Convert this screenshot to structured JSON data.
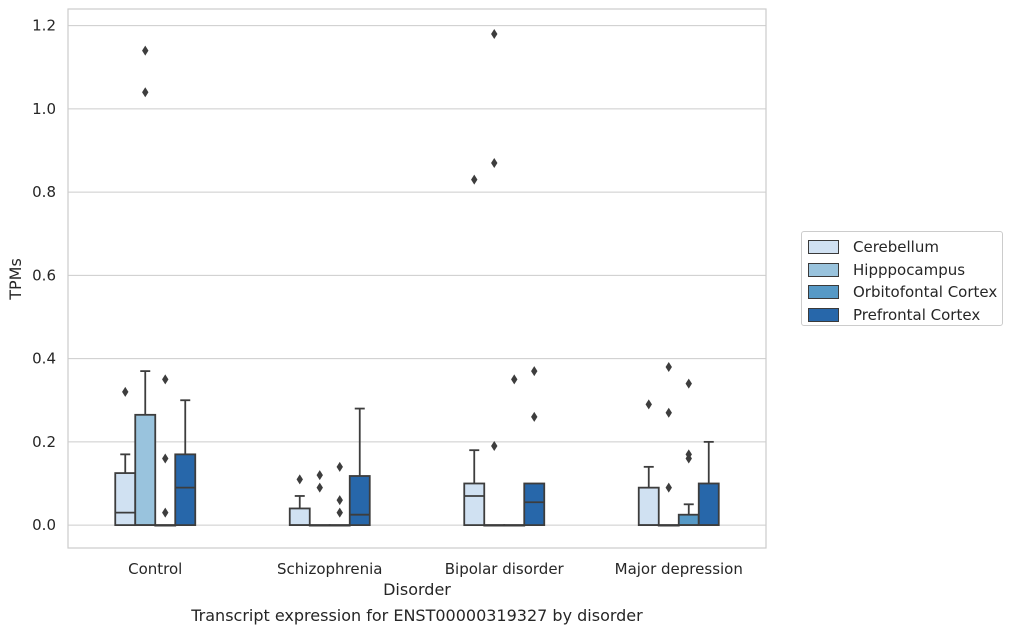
{
  "caption": "Transcript expression for ENST00000319327 by disorder",
  "chart_data": {
    "type": "box",
    "title": "",
    "xlabel": "Disorder",
    "ylabel": "TPMs",
    "ylim": [
      -0.055,
      1.24
    ],
    "yticks": [
      0.0,
      0.2,
      0.4,
      0.6,
      0.8,
      1.0,
      1.2
    ],
    "ytick_labels": [
      "0.0",
      "0.2",
      "0.4",
      "0.6",
      "0.8",
      "1.0",
      "1.2"
    ],
    "grid": true,
    "legend_position": "right",
    "categories": [
      "Control",
      "Schizophrenia",
      "Bipolar disorder",
      "Major depression"
    ],
    "series": [
      {
        "name": "Cerebellum",
        "color": "#d0e1f2",
        "boxes": [
          {
            "q1": 0,
            "median": 0.03,
            "q3": 0.125,
            "whisker_low": 0,
            "whisker_high": 0.17,
            "outliers": [
              0.32
            ]
          },
          {
            "q1": 0,
            "median": 0,
            "q3": 0.04,
            "whisker_low": 0,
            "whisker_high": 0.07,
            "outliers": [
              0.11
            ]
          },
          {
            "q1": 0,
            "median": 0.07,
            "q3": 0.1,
            "whisker_low": 0,
            "whisker_high": 0.18,
            "outliers": [
              0.83
            ]
          },
          {
            "q1": 0,
            "median": 0,
            "q3": 0.09,
            "whisker_low": 0,
            "whisker_high": 0.14,
            "outliers": [
              0.29
            ]
          }
        ]
      },
      {
        "name": "Hipppocampus",
        "color": "#99c3dd",
        "boxes": [
          {
            "q1": 0,
            "median": 0,
            "q3": 0.265,
            "whisker_low": 0,
            "whisker_high": 0.37,
            "outliers": [
              1.04,
              1.14
            ]
          },
          {
            "q1": 0,
            "median": 0,
            "q3": 0,
            "whisker_low": 0,
            "whisker_high": 0,
            "outliers": [
              0.09,
              0.12
            ]
          },
          {
            "q1": 0,
            "median": 0,
            "q3": 0,
            "whisker_low": 0,
            "whisker_high": 0,
            "outliers": [
              0.19,
              1.18,
              0.87
            ]
          },
          {
            "q1": 0,
            "median": 0,
            "q3": 0,
            "whisker_low": 0,
            "whisker_high": 0,
            "outliers": [
              0.09,
              0.27,
              0.38
            ]
          }
        ]
      },
      {
        "name": "Orbitofontal Cortex",
        "color": "#5699c6",
        "boxes": [
          {
            "q1": 0,
            "median": 0,
            "q3": 0,
            "whisker_low": 0,
            "whisker_high": 0,
            "outliers": [
              0.03,
              0.16,
              0.35
            ]
          },
          {
            "q1": 0,
            "median": 0,
            "q3": 0,
            "whisker_low": 0,
            "whisker_high": 0,
            "outliers": [
              0.03,
              0.06,
              0.14
            ]
          },
          {
            "q1": 0,
            "median": 0,
            "q3": 0,
            "whisker_low": 0,
            "whisker_high": 0,
            "outliers": [
              0.35
            ]
          },
          {
            "q1": 0,
            "median": 0,
            "q3": 0.025,
            "whisker_low": 0,
            "whisker_high": 0.05,
            "outliers": [
              0.16,
              0.17,
              0.34
            ]
          }
        ]
      },
      {
        "name": "Prefrontal Cortex",
        "color": "#2767aa",
        "boxes": [
          {
            "q1": 0,
            "median": 0.09,
            "q3": 0.17,
            "whisker_low": 0,
            "whisker_high": 0.3,
            "outliers": []
          },
          {
            "q1": 0,
            "median": 0.025,
            "q3": 0.118,
            "whisker_low": 0,
            "whisker_high": 0.28,
            "outliers": []
          },
          {
            "q1": 0,
            "median": 0.055,
            "q3": 0.1,
            "whisker_low": 0,
            "whisker_high": 0.1,
            "outliers": [
              0.26,
              0.37
            ]
          },
          {
            "q1": 0,
            "median": 0,
            "q3": 0.1,
            "whisker_low": 0,
            "whisker_high": 0.2,
            "outliers": []
          }
        ]
      }
    ]
  }
}
